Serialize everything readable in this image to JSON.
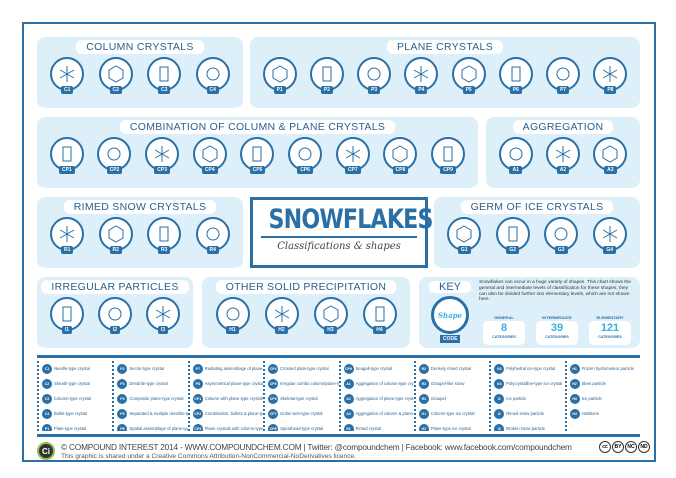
{
  "title": {
    "main": "SNOWFLAKES",
    "sub": "Classifications & shapes"
  },
  "colors": {
    "primary": "#2a6fa5",
    "panel": "#ddf0fa",
    "accent": "#3ab0e0"
  },
  "panels": [
    {
      "id": "column",
      "title": "COLUMN CRYSTALS",
      "codes": [
        "C1",
        "C2",
        "C3",
        "C4"
      ]
    },
    {
      "id": "plane",
      "title": "PLANE CRYSTALS",
      "codes": [
        "P1",
        "P2",
        "P3",
        "P4",
        "P5",
        "P6",
        "P7",
        "P8"
      ]
    },
    {
      "id": "combination",
      "title": "COMBINATION OF COLUMN & PLANE  CRYSTALS",
      "codes": [
        "CP1",
        "CP2",
        "CP3",
        "CP4",
        "CP5",
        "CP6",
        "CP7",
        "CP8",
        "CP9"
      ]
    },
    {
      "id": "aggregation",
      "title": "AGGREGATION",
      "codes": [
        "A1",
        "A2",
        "A3"
      ]
    },
    {
      "id": "rimed",
      "title": "RIMED SNOW CRYSTALS",
      "codes": [
        "R1",
        "R2",
        "R3",
        "R4"
      ]
    },
    {
      "id": "germ",
      "title": "GERM OF ICE CRYSTALS",
      "codes": [
        "G1",
        "G2",
        "G3",
        "G4"
      ]
    },
    {
      "id": "irregular",
      "title": "IRREGULAR PARTICLES",
      "codes": [
        "I1",
        "I2",
        "I3"
      ]
    },
    {
      "id": "other",
      "title": "OTHER SOLID PRECIPITATION",
      "codes": [
        "H1",
        "H2",
        "H3",
        "H4"
      ]
    }
  ],
  "key": {
    "title": "KEY",
    "shape": "Shape",
    "code": "CODE",
    "description": "Snowflakes can occur in a huge variety of shapes. This chart shows the general and intermediate levels of classification for these shapes; they can also be divided further into elementary levels, which are not shown here.",
    "stats": [
      {
        "label": "GENERAL",
        "value": "8",
        "unit": "CATEGORIES"
      },
      {
        "label": "INTERMEDIATE",
        "value": "39",
        "unit": "CATEGORIES"
      },
      {
        "label": "ELEMENTARY",
        "value": "121",
        "unit": "CATEGORIES"
      }
    ]
  },
  "legend": [
    [
      [
        "C1",
        "Needle-type crystal"
      ],
      [
        "C2",
        "Sheath-type crystal"
      ],
      [
        "C3",
        "Column-type crystal"
      ],
      [
        "C4",
        "Bullet-type crystal"
      ],
      [
        "P1",
        "Plate-type crystal"
      ]
    ],
    [
      [
        "P2",
        "Sector-type crystal"
      ],
      [
        "P3",
        "Dendrite-type crystal"
      ],
      [
        "P4",
        "Composite plane-type crystal"
      ],
      [
        "P5",
        "Separated & multiple dendrite-type crystal"
      ],
      [
        "P6",
        "Spatial assemblage of plane-type crystal"
      ]
    ],
    [
      [
        "P7",
        "Radiating assemblage of plane-type"
      ],
      [
        "P8",
        "Asymmetrical plane-type crystal"
      ],
      [
        "CP1",
        "Column with plane-type crystals"
      ],
      [
        "CP2",
        "Combination: bullets & plane-type"
      ],
      [
        "CP3",
        "Plane crystals with column-type"
      ]
    ],
    [
      [
        "CP4",
        "Crossed plate-type crystal"
      ],
      [
        "CP5",
        "Irregular combo column/plane-type"
      ],
      [
        "CP6",
        "Skeletal-type crystal"
      ],
      [
        "CP7",
        "Gohei twin-type crystal"
      ],
      [
        "CP8",
        "Spearhead-type crystal"
      ]
    ],
    [
      [
        "CP9",
        "Seagull-type crystal"
      ],
      [
        "A1",
        "Aggregation of column-type crystals"
      ],
      [
        "A2",
        "Aggregation of plane-type crystals"
      ],
      [
        "A3",
        "Aggregation of column & plane-type"
      ],
      [
        "R1",
        "Rimed crystal"
      ]
    ],
    [
      [
        "R2",
        "Densely rimed crystal"
      ],
      [
        "R3",
        "Graupel-like snow"
      ],
      [
        "R4",
        "Graupel"
      ],
      [
        "G1",
        "Column-type ice crystal"
      ],
      [
        "G2",
        "Plane-type ice crystal"
      ]
    ],
    [
      [
        "G3",
        "Polyhedral ice-type crystal"
      ],
      [
        "G4",
        "Polycrystalline-type ice crystal"
      ],
      [
        "I1",
        "Ice particle"
      ],
      [
        "I2",
        "Rimed snow particle"
      ],
      [
        "I3",
        "Broken snow particle"
      ]
    ],
    [
      [
        "H1",
        "Frozen hydrometeor particle"
      ],
      [
        "H2",
        "Sleet particle"
      ],
      [
        "H3",
        "Ice particle"
      ],
      [
        "H4",
        "Hailstone"
      ]
    ]
  ],
  "footer": {
    "logo": "Ci",
    "line1": "© COMPOUND INTEREST 2014 - WWW.COMPOUNDCHEM.COM | Twitter: @compoundchem | Facebook: www.facebook.com/compoundchem",
    "line2": "This graphic is shared under a Creative Commons Attribution-NonCommercial-NoDerivatives licence.",
    "license_badges": [
      "cc",
      "BY",
      "NC",
      "ND"
    ]
  }
}
